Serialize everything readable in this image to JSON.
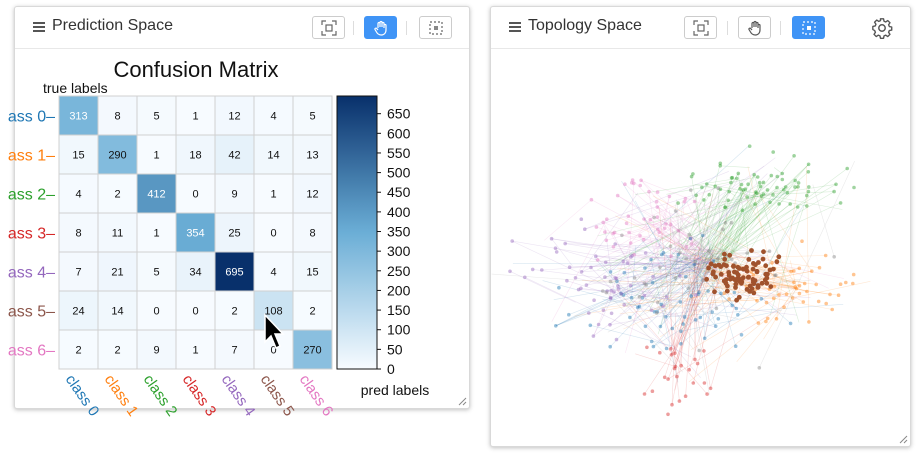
{
  "prediction_panel": {
    "title": "Prediction Space",
    "tools": [
      "fit-view",
      "pan",
      "lasso-select"
    ],
    "active_tool": "pan"
  },
  "topology_panel": {
    "title": "Topology Space",
    "tools": [
      "fit-view",
      "pan",
      "lasso-select"
    ],
    "active_tool": "lasso-select",
    "settings_icon": "gear-icon"
  },
  "chart_data": {
    "type": "heatmap",
    "title": "Confusion Matrix",
    "ylabel": "true labels",
    "xlabel": "pred labels",
    "row_labels": [
      "ass 0",
      "ass 1",
      "ass 2",
      "ass 3",
      "ass 4",
      "ass 5",
      "ass 6"
    ],
    "col_labels": [
      "class 0",
      "class 1",
      "class 2",
      "class 3",
      "class 4",
      "class 5",
      "class 6"
    ],
    "label_colors": [
      "#1f77b4",
      "#ff7f0e",
      "#2ca02c",
      "#d62728",
      "#9467bd",
      "#8c564b",
      "#e377c2"
    ],
    "matrix": [
      [
        313,
        8,
        5,
        1,
        12,
        4,
        5
      ],
      [
        15,
        290,
        1,
        18,
        42,
        14,
        13
      ],
      [
        4,
        2,
        412,
        0,
        9,
        1,
        12
      ],
      [
        8,
        11,
        1,
        354,
        25,
        0,
        8
      ],
      [
        7,
        21,
        5,
        34,
        695,
        4,
        15
      ],
      [
        24,
        14,
        0,
        0,
        2,
        108,
        2
      ],
      [
        2,
        2,
        9,
        1,
        7,
        0,
        270
      ]
    ],
    "colorbar_ticks": [
      "650",
      "600",
      "550",
      "500",
      "450",
      "400",
      "350",
      "300",
      "250",
      "200",
      "150",
      "100",
      "50",
      "0"
    ],
    "colorbar_range": [
      0,
      695
    ],
    "colormap": "Blues"
  }
}
